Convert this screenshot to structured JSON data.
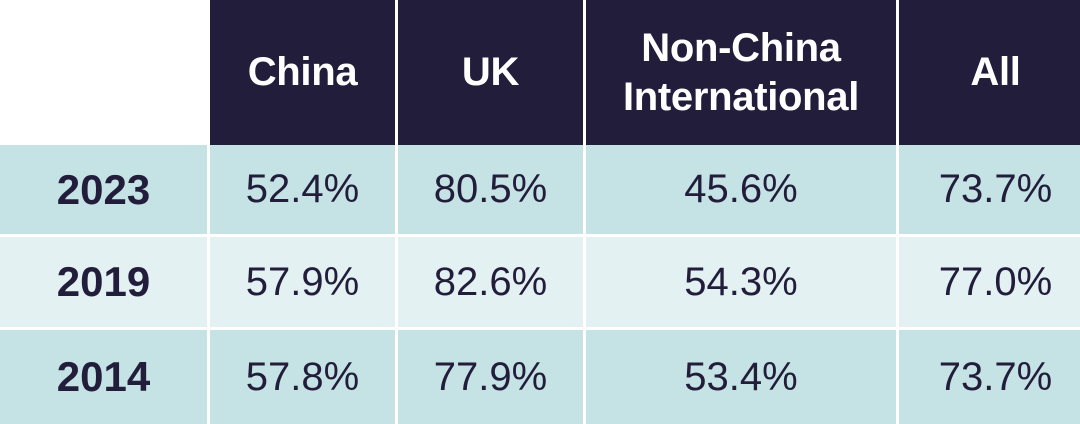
{
  "chart_data": {
    "type": "table",
    "columns": [
      "China",
      "UK",
      "Non-China International",
      "All"
    ],
    "column_lines": [
      [
        "China"
      ],
      [
        "UK"
      ],
      [
        "Non-China",
        "International"
      ],
      [
        "All"
      ]
    ],
    "rows": [
      {
        "label": "2023",
        "values": [
          "52.4%",
          "80.5%",
          "45.6%",
          "73.7%"
        ]
      },
      {
        "label": "2019",
        "values": [
          "57.9%",
          "82.6%",
          "54.3%",
          "77.0%"
        ]
      },
      {
        "label": "2014",
        "values": [
          "57.8%",
          "77.9%",
          "53.4%",
          "73.7%"
        ]
      }
    ]
  },
  "colors": {
    "header_bg": "#221d3b",
    "header_text": "#ffffff",
    "row_dark": "#c5e3e4",
    "row_light": "#e3f1f2",
    "text": "#221d3b"
  }
}
